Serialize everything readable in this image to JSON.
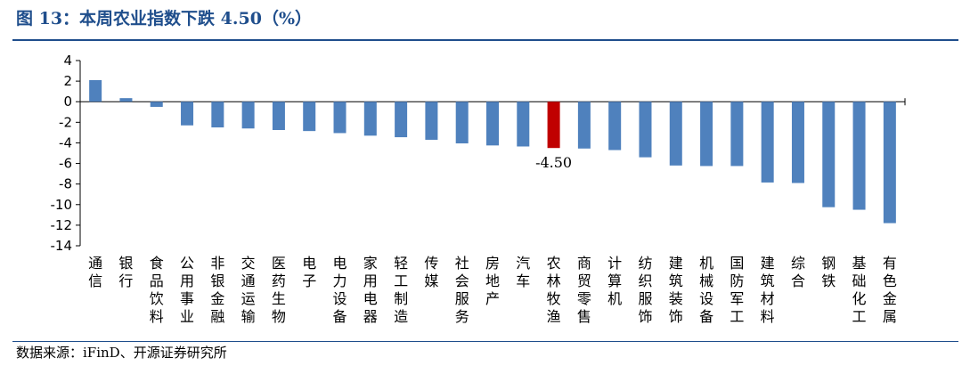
{
  "title": "图 13：本周农业指数下跌 4.50（%）",
  "source": "数据来源：iFinD、开源证券研究所",
  "colors": {
    "bar": "#4f81bd",
    "highlight": "#c00000",
    "axis": "#000000",
    "title": "#1f4e8c"
  },
  "chart_data": {
    "type": "bar",
    "title": "本周农业指数下跌 4.50（%）",
    "xlabel": "",
    "ylabel": "%",
    "ylim": [
      -14,
      4
    ],
    "yticks": [
      4,
      2,
      0,
      -2,
      -4,
      -6,
      -8,
      -10,
      -12,
      -14
    ],
    "grid": false,
    "categories": [
      "通信",
      "银行",
      "食品饮料",
      "公用事业",
      "非银金融",
      "交通运输",
      "医药生物",
      "电子",
      "电力设备",
      "家用电器",
      "轻工制造",
      "传媒",
      "社会服务",
      "房地产",
      "汽车",
      "农林牧渔",
      "商贸零售",
      "计算机",
      "纺织服饰",
      "建筑装饰",
      "机械设备",
      "国防军工",
      "建筑材料",
      "综合",
      "钢铁",
      "基础化工",
      "有色金属"
    ],
    "values": [
      2.1,
      0.35,
      -0.5,
      -2.3,
      -2.5,
      -2.6,
      -2.75,
      -2.85,
      -3.05,
      -3.3,
      -3.45,
      -3.7,
      -4.05,
      -4.25,
      -4.35,
      -4.5,
      -4.55,
      -4.7,
      -5.4,
      -6.2,
      -6.25,
      -6.25,
      -7.85,
      -7.9,
      -10.25,
      -10.5,
      -11.8
    ],
    "highlight_category": "农林牧渔",
    "data_labels": [
      {
        "category": "农林牧渔",
        "text": "-4.50"
      }
    ]
  }
}
